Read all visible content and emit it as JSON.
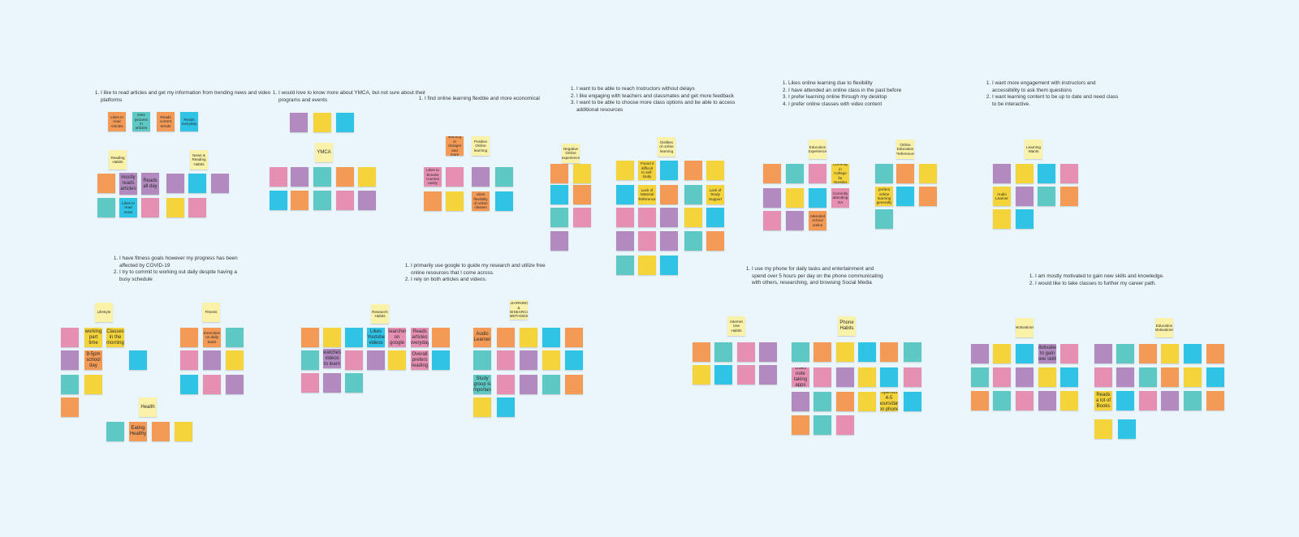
{
  "clusters": [
    {
      "summary": [
        "I like to read articles and get my information from trending news and video platforms"
      ],
      "notes": [
        {
          "text": "Likes to read Articles",
          "color": "#f39a57"
        },
        {
          "text": "Gets pictures in articles",
          "color": "#5ec8c4"
        },
        {
          "text": "Reads current trends",
          "color": "#f39a57"
        },
        {
          "text": "Reads everyday",
          "color": "#2fc3e6"
        },
        {
          "text": "Reading Habits",
          "color": "#fbf2a9"
        },
        {
          "text": "News & Reading Habits",
          "color": "#fbf2a9"
        },
        {
          "text": "mostly reads articles",
          "color": "#b28ac0"
        },
        {
          "text": "Reads all day",
          "color": "#b28ac0"
        },
        {
          "text": "Likes to read news",
          "color": "#2fc3e6"
        }
      ]
    },
    {
      "summary": [
        "I would love to know more about YMCA, but not sure about their programs and events"
      ],
      "notes": [
        {
          "text": "YMCA",
          "color": "#fbf2a9"
        }
      ]
    },
    {
      "summary": [
        "I find online learning flexible and more economical"
      ],
      "notes": [
        {
          "text": "Positive Online learning",
          "color": "#fbf2a9"
        },
        {
          "text": "Online learning is cheaper and more flexible",
          "color": "#f39a57"
        },
        {
          "text": "Likes to browse courses easily",
          "color": "#e58fb3"
        },
        {
          "text": "Likes flexibility of online classes",
          "color": "#f39a57"
        }
      ]
    },
    {
      "summary": [
        "I want to be able to reach Instructors without delays",
        "I like engaging with teachers and classmates and get more feedback",
        "I want to be able to choose more class options and be able to access additional resources"
      ],
      "notes": [
        {
          "text": "Negative Online experience",
          "color": "#fbf2a9"
        },
        {
          "text": "Dislikes of online learning",
          "color": "#fbf2a9"
        },
        {
          "text": "Found it difficult to self-study",
          "color": "#f4d43a"
        },
        {
          "text": "Lack of Material Reference",
          "color": "#f4d43a"
        },
        {
          "text": "Lack of Study Support",
          "color": "#f4d43a"
        }
      ]
    },
    {
      "summary": [
        "Likes online learning due to flexibility",
        "I have attended an online class in the past before",
        "I prefer learning online through my desktop",
        "I prefer online classes with video content"
      ],
      "notes": [
        {
          "text": "Education Experience",
          "color": "#fbf2a9"
        },
        {
          "text": "Online Education Preferences",
          "color": "#fbf2a9"
        },
        {
          "text": "Currently in College for Nursing",
          "color": "#f4d43a"
        },
        {
          "text": "Currently attending GA",
          "color": "#e58fb3"
        },
        {
          "text": "Attended school online",
          "color": "#f39a57"
        },
        {
          "text": "prefers online learning generally",
          "color": "#f4d43a"
        }
      ]
    },
    {
      "summary": [
        "I want more engagement with instructors and accessibility to ask them questions",
        "I want learning content to be up to date and need class to be interactive."
      ],
      "notes": [
        {
          "text": "Learning Wants",
          "color": "#fbf2a9"
        },
        {
          "text": "Audio Learner",
          "color": "#f4d43a"
        }
      ]
    },
    {
      "summary": [
        "I have fitness goals however my progress has been affected by COVID-19",
        "I try to commit to working out daily despite having a busy schedule"
      ],
      "notes": [
        {
          "text": "Lifestyle",
          "color": "#fbf2a9"
        },
        {
          "text": "Fitness",
          "color": "#fbf2a9"
        },
        {
          "text": "working part time",
          "color": "#f4d43a"
        },
        {
          "text": "Classes in the morning",
          "color": "#f4d43a"
        },
        {
          "text": "9-5pm school day",
          "color": "#f39a57"
        },
        {
          "text": "Exercises on daily basis",
          "color": "#f39a57"
        },
        {
          "text": "Health",
          "color": "#fbf2a9"
        },
        {
          "text": "Eating Healthy",
          "color": "#f39a57"
        }
      ]
    },
    {
      "summary": [
        "I primarily use google to guide my research and utilize free online resources that I come across.",
        "I rely on both articles and videos."
      ],
      "notes": [
        {
          "text": "Research Habits",
          "color": "#fbf2a9"
        },
        {
          "text": "LEARNING & RESEARCH METHODS",
          "color": "#fbf2a9"
        },
        {
          "text": "watches videos to learn",
          "color": "#b28ac0"
        },
        {
          "text": "Likes Youtube videos",
          "color": "#2fc3e6"
        },
        {
          "text": "Searches on google",
          "color": "#e58fb3"
        },
        {
          "text": "Reads articles everyday",
          "color": "#e58fb3"
        },
        {
          "text": "Overall prefers reading",
          "color": "#e58fb3"
        },
        {
          "text": "Audio Learner",
          "color": "#f39a57"
        },
        {
          "text": "Study group is important",
          "color": "#5ec8c4"
        }
      ]
    },
    {
      "summary": [
        "I use my phone for daily tasks and entertainment and spend over 5 hours per day on the phone communicating with others, researching, and browsing Social Media"
      ],
      "notes": [
        {
          "text": "Internet Use Habits",
          "color": "#fbf2a9"
        },
        {
          "text": "Phone Habits",
          "color": "#fbf2a9"
        },
        {
          "text": "Uses note taking apps",
          "color": "#e58fb3"
        },
        {
          "text": "Spends 4-5 hours/day on phone",
          "color": "#f4d43a"
        }
      ]
    },
    {
      "summary": [
        "I am mostly motivated to gain new skills and knowledge.",
        "I would like to take classes to further my career path."
      ],
      "notes": [
        {
          "text": "Motivations",
          "color": "#fbf2a9"
        },
        {
          "text": "Education Motivations",
          "color": "#fbf2a9"
        },
        {
          "text": "Motivated to gain new skills",
          "color": "#b28ac0"
        },
        {
          "text": "Reads a lot of Books",
          "color": "#f4d43a"
        }
      ]
    }
  ]
}
